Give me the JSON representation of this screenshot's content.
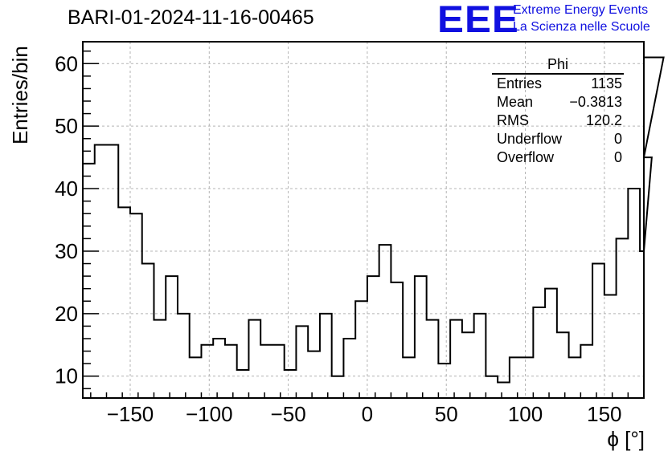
{
  "title": "BARI-01-2024-11-16-00465",
  "logo": {
    "mark": "EEE",
    "line1": "Extreme Energy Events",
    "line2": "La Scienza nelle Scuole",
    "color": "#1010e0"
  },
  "stats_box": {
    "name": "Phi",
    "rows": [
      {
        "label": "Entries",
        "value": "1135"
      },
      {
        "label": "Mean",
        "value": "−0.3813"
      },
      {
        "label": "RMS",
        "value": "120.2"
      },
      {
        "label": "Underflow",
        "value": "0"
      },
      {
        "label": "Overflow",
        "value": "0"
      }
    ]
  },
  "chart_data": {
    "type": "histogram",
    "title": "BARI-01-2024-11-16-00465",
    "xlabel": "ϕ [°]",
    "ylabel": "Entries/bin",
    "xlim": [
      -180,
      175
    ],
    "ylim": [
      6.5,
      63.5
    ],
    "bin_width": 7.5,
    "x_start": -180,
    "x_ticks": [
      -150,
      -100,
      -50,
      0,
      50,
      100,
      150
    ],
    "x_tick_labels": [
      "−150",
      "−100",
      "−50",
      "0",
      "50",
      "100",
      "150"
    ],
    "y_ticks": [
      10,
      20,
      30,
      40,
      50,
      60
    ],
    "y_tick_labels": [
      "10",
      "20",
      "30",
      "40",
      "50",
      "60"
    ],
    "grid": true,
    "line_color": "#000000",
    "values": [
      44,
      47,
      47,
      37,
      36,
      28,
      19,
      26,
      20,
      13,
      15,
      16,
      15,
      11,
      19,
      15,
      15,
      11,
      18,
      14,
      20,
      10,
      16,
      22,
      26,
      31,
      25,
      13,
      26,
      19,
      12,
      19,
      17,
      20,
      10,
      9,
      13,
      13,
      21,
      24,
      17,
      13,
      15,
      28,
      23,
      32,
      40,
      30,
      45,
      61
    ]
  }
}
